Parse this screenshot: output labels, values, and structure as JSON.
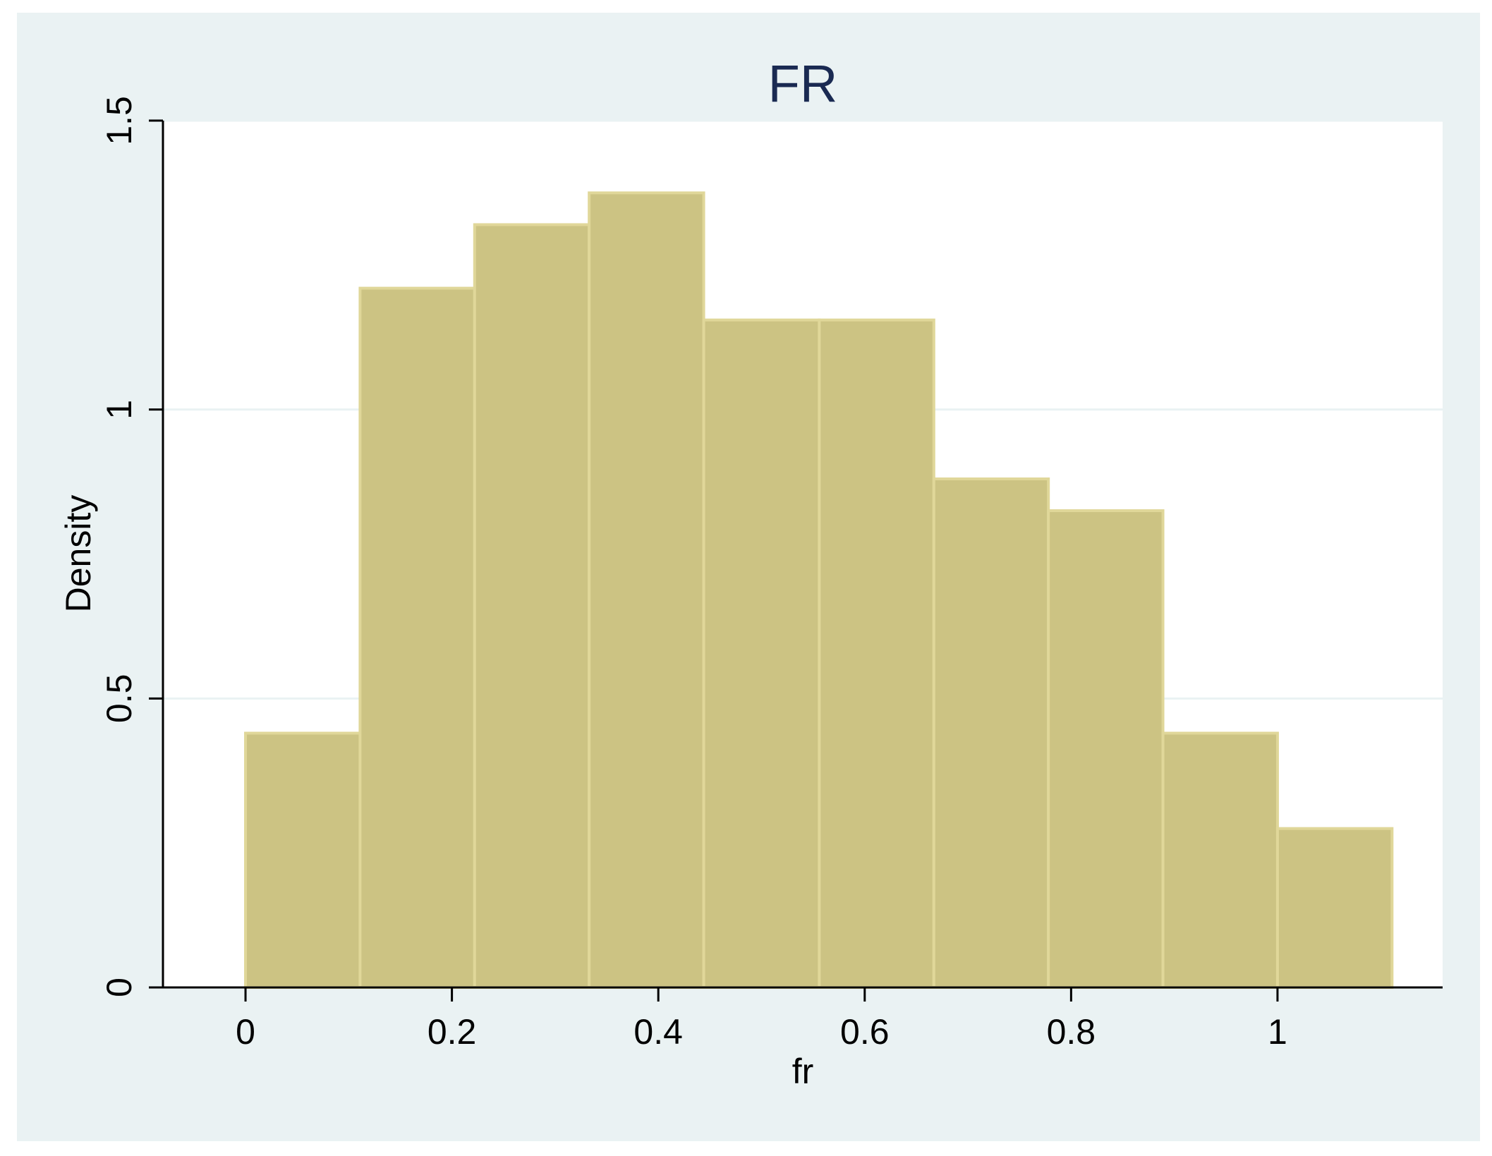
{
  "chart_data": {
    "type": "bar",
    "title": "FR",
    "xlabel": "fr",
    "ylabel": "Density",
    "bin_edges": [
      0,
      0.111,
      0.222,
      0.333,
      0.444,
      0.556,
      0.667,
      0.778,
      0.889,
      1.0,
      1.111
    ],
    "values": [
      0.44,
      1.21,
      1.32,
      1.375,
      1.155,
      1.155,
      0.88,
      0.825,
      0.44,
      0.275
    ],
    "xlim": [
      -0.08,
      1.16
    ],
    "ylim": [
      0,
      1.5
    ],
    "xticks": [
      "0",
      "0.2",
      "0.4",
      "0.6",
      "0.8",
      "1"
    ],
    "xtick_values": [
      0,
      0.2,
      0.4,
      0.6,
      0.8,
      1
    ],
    "yticks": [
      "0",
      "0.5",
      "1",
      "1.5"
    ],
    "ytick_values": [
      0,
      0.5,
      1,
      1.5
    ],
    "grid": true,
    "colors": {
      "bar_fill": "#ccc383",
      "bar_outline": "#e0d799",
      "frame_bg": "#eaf2f3",
      "plot_bg": "#ffffff",
      "grid": "#eaf2f3",
      "title": "#1a2a52"
    }
  }
}
